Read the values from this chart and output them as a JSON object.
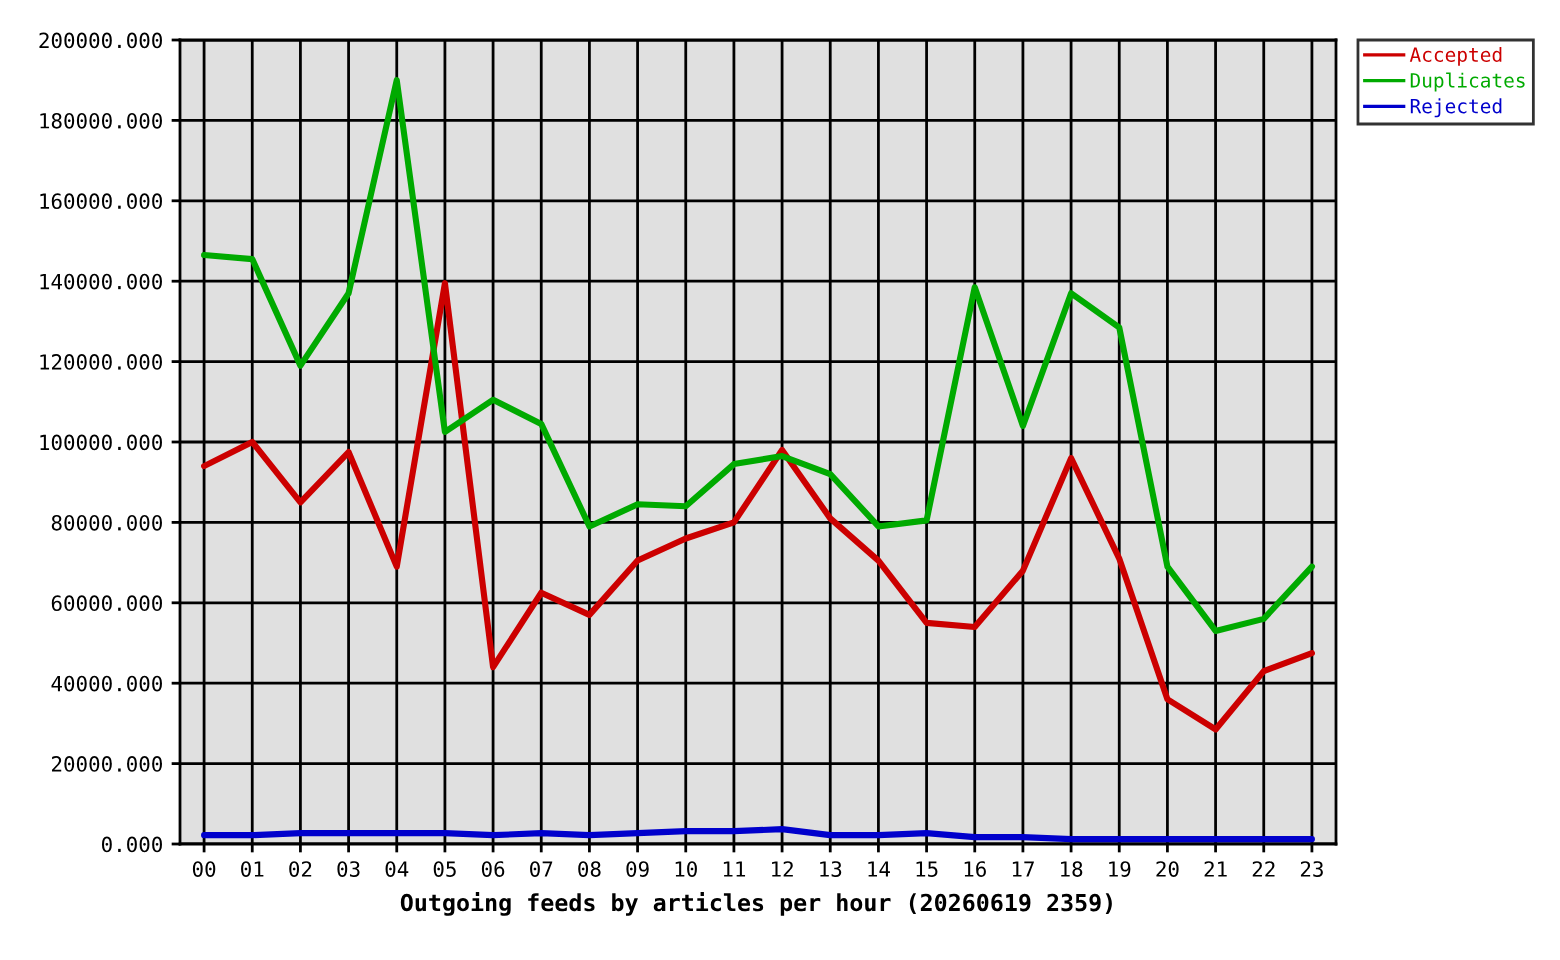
{
  "chart_data": {
    "type": "line",
    "xlabel": "Outgoing feeds by articles per hour (20260619 2359)",
    "categories": [
      "00",
      "01",
      "02",
      "03",
      "04",
      "05",
      "06",
      "07",
      "08",
      "09",
      "10",
      "11",
      "12",
      "13",
      "14",
      "15",
      "16",
      "17",
      "18",
      "19",
      "20",
      "21",
      "22",
      "23"
    ],
    "series": [
      {
        "name": "Accepted",
        "color": "#cc0000",
        "values": [
          94000,
          100000,
          85000,
          97500,
          69000,
          139500,
          44000,
          62500,
          57000,
          70500,
          76000,
          80000,
          98000,
          81000,
          70500,
          55000,
          54000,
          68000,
          96000,
          71000,
          36000,
          28500,
          43000,
          47500
        ]
      },
      {
        "name": "Duplicates",
        "color": "#00aa00",
        "values": [
          146500,
          145500,
          119000,
          137000,
          190000,
          102500,
          110500,
          104500,
          79000,
          84500,
          84000,
          94500,
          96500,
          92000,
          79000,
          80500,
          138500,
          104000,
          137000,
          128500,
          69000,
          53000,
          56000,
          69000
        ]
      },
      {
        "name": "Rejected",
        "color": "#0000cc",
        "values": [
          2200,
          2200,
          2700,
          2700,
          2700,
          2700,
          2200,
          2700,
          2200,
          2700,
          3200,
          3200,
          3700,
          2200,
          2200,
          2700,
          1700,
          1700,
          1200,
          1200,
          1200,
          1200,
          1200,
          1200
        ]
      }
    ],
    "ylim": [
      0,
      200000
    ],
    "yticks": [
      {
        "value": 0,
        "label": "0.000"
      },
      {
        "value": 20000,
        "label": "20000.000"
      },
      {
        "value": 40000,
        "label": "40000.000"
      },
      {
        "value": 60000,
        "label": "60000.000"
      },
      {
        "value": 80000,
        "label": "80000.000"
      },
      {
        "value": 100000,
        "label": "100000.000"
      },
      {
        "value": 120000,
        "label": "120000.000"
      },
      {
        "value": 140000,
        "label": "140000.000"
      },
      {
        "value": 160000,
        "label": "160000.000"
      },
      {
        "value": 180000,
        "label": "180000.000"
      },
      {
        "value": 200000,
        "label": "200000.000"
      }
    ],
    "grid": true,
    "legend": "top right",
    "line_style": "solid"
  }
}
